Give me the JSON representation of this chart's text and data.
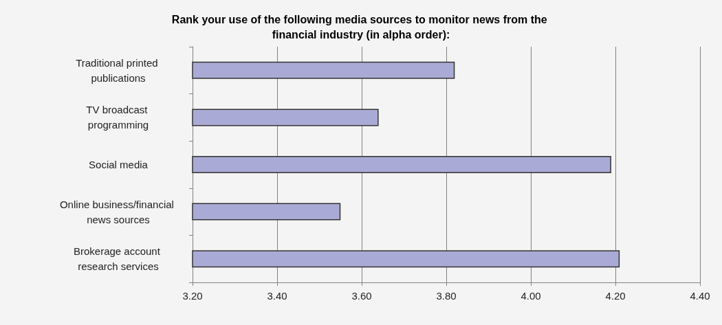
{
  "chart_data": {
    "type": "bar",
    "orientation": "horizontal",
    "title": "Rank your use of the following media sources to monitor news from the financial industry (in alpha order):",
    "categories": [
      "Traditional printed publications",
      "TV broadcast programming",
      "Social media",
      "Online business/financial news sources",
      "Brokerage account research services"
    ],
    "values": [
      3.82,
      3.64,
      4.19,
      3.55,
      4.21
    ],
    "color": "#aaaad6",
    "xlim": [
      3.2,
      4.4
    ],
    "xticks": [
      {
        "value": 3.2,
        "label": "3.20"
      },
      {
        "value": 3.4,
        "label": "3.40"
      },
      {
        "value": 3.6,
        "label": "3.60"
      },
      {
        "value": 3.8,
        "label": "3.80"
      },
      {
        "value": 4.0,
        "label": "4.00"
      },
      {
        "value": 4.2,
        "label": "4.20"
      },
      {
        "value": 4.4,
        "label": "4.40"
      }
    ],
    "grid": "x"
  }
}
